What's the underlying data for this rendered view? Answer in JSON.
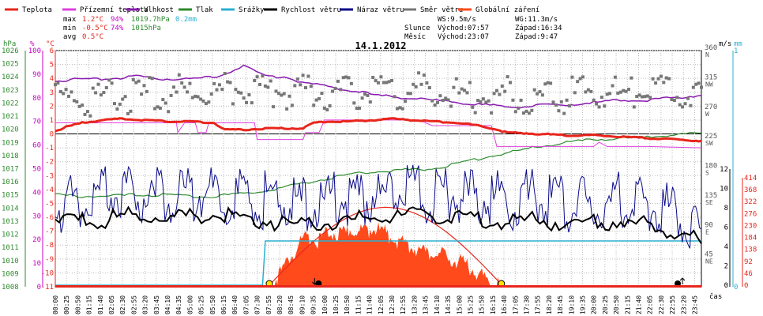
{
  "legend": [
    {
      "label": "Teplota",
      "color": "#e8261c"
    },
    {
      "label": "Přízemní teplota",
      "color": "#e040e0"
    },
    {
      "label": "Vlhkost",
      "color": "#8a1bb0"
    },
    {
      "label": "Tlak",
      "color": "#2e8b2e"
    },
    {
      "label": "Srážky",
      "color": "#2bb0d0"
    },
    {
      "label": "Rychlost větru",
      "color": "#000000"
    },
    {
      "label": "Náraz větru",
      "color": "#0a0a8a"
    },
    {
      "label": "Směr větru",
      "color": "#777777"
    },
    {
      "label": "Globální záření",
      "color": "#ff4a1c"
    }
  ],
  "stats": {
    "max": {
      "label": "max",
      "temp": "1.2°C",
      "hum": "94%",
      "press": "1019.7hPa",
      "rain": "0.2mm"
    },
    "min": {
      "label": "min",
      "temp": "-0.5°C",
      "hum": "74%",
      "press": "1015hPa"
    },
    "avg": {
      "label": "avg",
      "temp": "0.5°C"
    }
  },
  "wind_info": {
    "ws": "WS:9.5m/s",
    "wg": "WG:11.3m/s"
  },
  "sun_info": {
    "label": "Slunce",
    "rise": "Východ:07:57",
    "set": "Západ:16:34"
  },
  "moon_info": {
    "label": "Měsíc",
    "rise": "Východ:23:07",
    "set": "Západ:9:47"
  },
  "axis_headers": {
    "hpa": "hPa",
    "pct": "%",
    "degc": "°C",
    "ms": "m/s",
    "mm": "mm",
    "time": "čas"
  },
  "chart_data": {
    "type": "line",
    "title": "14.1.2012",
    "x_ticks": [
      "00:00",
      "00:25",
      "00:50",
      "01:15",
      "01:40",
      "02:05",
      "02:30",
      "02:55",
      "03:20",
      "03:45",
      "04:10",
      "04:35",
      "05:00",
      "05:25",
      "05:50",
      "06:15",
      "06:40",
      "07:05",
      "07:30",
      "07:55",
      "08:20",
      "08:45",
      "09:10",
      "09:35",
      "10:00",
      "10:25",
      "10:50",
      "11:15",
      "11:40",
      "12:05",
      "12:30",
      "12:55",
      "13:20",
      "13:45",
      "14:10",
      "14:35",
      "15:00",
      "15:25",
      "15:50",
      "16:15",
      "16:40",
      "17:05",
      "17:30",
      "17:55",
      "18:20",
      "18:45",
      "19:10",
      "19:35",
      "20:00",
      "20:25",
      "20:50",
      "21:15",
      "21:40",
      "22:05",
      "22:30",
      "22:55",
      "23:20",
      "23:45"
    ],
    "axes": {
      "pressure_hpa": {
        "min": 1008,
        "max": 1026,
        "step": 1,
        "color": "#2e8b2e",
        "ticks": [
          "1008",
          "1009",
          "1010",
          "1011",
          "1012",
          "1013",
          "1014",
          "1015",
          "1016",
          "1017",
          "1018",
          "1019",
          "1020",
          "1021",
          "1022",
          "1023",
          "1024",
          "1025",
          "1026"
        ]
      },
      "humidity_pct": {
        "min": 0,
        "max": 100,
        "step": 10,
        "color": "#c800c8",
        "ticks": [
          "0",
          "10",
          "20",
          "30",
          "40",
          "50",
          "60",
          "70",
          "80",
          "90",
          "100"
        ]
      },
      "temperature_c": {
        "min": -11,
        "max": 6,
        "step": 1,
        "color": "#e8261c",
        "ticks": [
          "-11",
          "-10",
          "-9",
          "-8",
          "-7",
          "-6",
          "-5",
          "-4",
          "-3",
          "-2",
          "-1",
          "0",
          "1",
          "2",
          "3",
          "4",
          "5",
          "6"
        ]
      },
      "wind_dir_deg": {
        "ticks": [
          {
            "v": 45,
            "l": "45",
            "c": "NE"
          },
          {
            "v": 90,
            "l": "90",
            "c": "E"
          },
          {
            "v": 135,
            "l": "135",
            "c": "SE"
          },
          {
            "v": 180,
            "l": "180",
            "c": "S"
          },
          {
            "v": 225,
            "l": "225",
            "c": "SW"
          },
          {
            "v": 270,
            "l": "270",
            "c": "W"
          },
          {
            "v": 315,
            "l": "315",
            "c": "NW"
          },
          {
            "v": 360,
            "l": "360",
            "c": "N"
          }
        ]
      },
      "wind_speed_ms": {
        "min": 0,
        "max": 12,
        "ticks": [
          "0",
          "2",
          "4",
          "6",
          "8",
          "10",
          "12"
        ]
      },
      "rain_mm": {
        "ticks": [
          "0",
          "1"
        ]
      },
      "radiation_wm2": {
        "min": 0,
        "max": 414,
        "color": "#e8261c",
        "ticks": [
          "0",
          "46",
          "92",
          "138",
          "184",
          "230",
          "276",
          "322",
          "368",
          "414"
        ]
      }
    },
    "series": [
      {
        "name": "Teplota",
        "unit": "°C",
        "points": [
          [
            0,
            0.2
          ],
          [
            0.4,
            0.5
          ],
          [
            1,
            0.8
          ],
          [
            1.8,
            1.0
          ],
          [
            2.5,
            1.1
          ],
          [
            3.2,
            1.0
          ],
          [
            4.2,
            0.9
          ],
          [
            5,
            0.9
          ],
          [
            5.9,
            0.8
          ],
          [
            6.3,
            0.3
          ],
          [
            7,
            0.3
          ],
          [
            7.8,
            0.4
          ],
          [
            8.5,
            0.4
          ],
          [
            9.2,
            0.4
          ],
          [
            9.6,
            0.8
          ],
          [
            10.2,
            0.9
          ],
          [
            11,
            0.9
          ],
          [
            11.8,
            1.0
          ],
          [
            12.5,
            1.1
          ],
          [
            13.2,
            1.0
          ],
          [
            14,
            0.9
          ],
          [
            15,
            0.8
          ],
          [
            16,
            0.5
          ],
          [
            16.8,
            0.1
          ],
          [
            18,
            0.0
          ],
          [
            19,
            -0.1
          ],
          [
            20,
            -0.1
          ],
          [
            21,
            -0.2
          ],
          [
            22,
            -0.3
          ],
          [
            23,
            -0.4
          ],
          [
            24,
            -0.5
          ]
        ]
      },
      {
        "name": "Přízemní teplota",
        "unit": "°C",
        "points": [
          [
            0,
            0.8
          ],
          [
            1.2,
            0.8
          ],
          [
            1.25,
            0.8
          ],
          [
            4.5,
            0.8
          ],
          [
            4.55,
            0.1
          ],
          [
            4.8,
            0.8
          ],
          [
            5.2,
            0.8
          ],
          [
            5.3,
            0.1
          ],
          [
            5.6,
            0.1
          ],
          [
            5.7,
            0.8
          ],
          [
            6.8,
            0.8
          ],
          [
            7.4,
            0.8
          ],
          [
            7.5,
            -0.4
          ],
          [
            9.2,
            -0.4
          ],
          [
            9.3,
            0.1
          ],
          [
            9.8,
            0.1
          ],
          [
            10,
            1.0
          ],
          [
            13.5,
            1.0
          ],
          [
            14,
            0.6
          ],
          [
            16.2,
            0.6
          ],
          [
            16.4,
            -0.9
          ],
          [
            17,
            -0.9
          ],
          [
            20,
            -0.9
          ],
          [
            20.2,
            -0.6
          ],
          [
            20.5,
            -0.9
          ],
          [
            22,
            -0.9
          ],
          [
            24,
            -1.0
          ]
        ]
      },
      {
        "name": "Vlhkost",
        "unit": "%",
        "points": [
          [
            0,
            87
          ],
          [
            1,
            88
          ],
          [
            2,
            88
          ],
          [
            3,
            89
          ],
          [
            4,
            88
          ],
          [
            5,
            88
          ],
          [
            6,
            89
          ],
          [
            6.5,
            91
          ],
          [
            7,
            94
          ],
          [
            7.3,
            92
          ],
          [
            7.8,
            89
          ],
          [
            8.5,
            89
          ],
          [
            9,
            87
          ],
          [
            10,
            85
          ],
          [
            11,
            83
          ],
          [
            12,
            81
          ],
          [
            13,
            80
          ],
          [
            14,
            79
          ],
          [
            15,
            78
          ],
          [
            16,
            77
          ],
          [
            17,
            76
          ],
          [
            18,
            77
          ],
          [
            19,
            77
          ],
          [
            20,
            78
          ],
          [
            21,
            79
          ],
          [
            22,
            79
          ],
          [
            23,
            80
          ],
          [
            24,
            81
          ]
        ]
      },
      {
        "name": "Tlak",
        "unit": "hPa",
        "points": [
          [
            0,
            1015
          ],
          [
            1,
            1014.9
          ],
          [
            2,
            1014.9
          ],
          [
            3,
            1015
          ],
          [
            4,
            1015
          ],
          [
            5,
            1014.9
          ],
          [
            6,
            1014.9
          ],
          [
            7,
            1015.1
          ],
          [
            8,
            1015.4
          ],
          [
            9,
            1015.8
          ],
          [
            10,
            1016.2
          ],
          [
            11,
            1016.6
          ],
          [
            12,
            1016.8
          ],
          [
            13,
            1016.9
          ],
          [
            14,
            1017.0
          ],
          [
            15,
            1017.4
          ],
          [
            16,
            1017.9
          ],
          [
            17,
            1018.3
          ],
          [
            18,
            1018.7
          ],
          [
            19,
            1019.0
          ],
          [
            20,
            1019.2
          ],
          [
            21,
            1019.3
          ],
          [
            22,
            1019.4
          ],
          [
            23,
            1019.6
          ],
          [
            24,
            1019.7
          ]
        ]
      },
      {
        "name": "Srážky",
        "unit": "mm",
        "points": [
          [
            0,
            0
          ],
          [
            7.7,
            0
          ],
          [
            7.8,
            0.2
          ],
          [
            24,
            0.2
          ]
        ]
      },
      {
        "name": "Rychlost větru",
        "unit": "m/s",
        "points": [
          [
            0,
            6.4
          ],
          [
            1,
            6.8
          ],
          [
            2,
            6.9
          ],
          [
            3,
            7.3
          ],
          [
            4,
            7.0
          ],
          [
            5,
            7.2
          ],
          [
            6,
            7.5
          ],
          [
            7,
            7.0
          ],
          [
            8,
            6.7
          ],
          [
            9,
            6.3
          ],
          [
            10,
            6.5
          ],
          [
            11,
            6.8
          ],
          [
            12,
            7.0
          ],
          [
            13,
            7.2
          ],
          [
            14,
            7.4
          ],
          [
            15,
            7.1
          ],
          [
            16,
            6.8
          ],
          [
            17,
            6.6
          ],
          [
            18,
            6.7
          ],
          [
            19,
            6.5
          ],
          [
            20,
            6.4
          ],
          [
            21,
            6.6
          ],
          [
            22,
            6.1
          ],
          [
            23,
            5.6
          ],
          [
            24,
            4.3
          ]
        ]
      },
      {
        "name": "Náraz větru",
        "unit": "m/s",
        "points": [
          [
            0,
            8.2
          ],
          [
            1,
            9.0
          ],
          [
            2,
            9.3
          ],
          [
            3,
            9.1
          ],
          [
            4,
            9.0
          ],
          [
            5,
            9.3
          ],
          [
            6,
            9.6
          ],
          [
            7,
            9.0
          ],
          [
            8,
            8.8
          ],
          [
            9,
            8.5
          ],
          [
            10,
            8.7
          ],
          [
            11,
            9.0
          ],
          [
            12,
            9.3
          ],
          [
            13,
            9.4
          ],
          [
            14,
            9.6
          ],
          [
            15,
            9.2
          ],
          [
            16,
            8.9
          ],
          [
            17,
            8.7
          ],
          [
            18,
            8.9
          ],
          [
            19,
            8.6
          ],
          [
            20,
            8.4
          ],
          [
            21,
            8.6
          ],
          [
            22,
            8.0
          ],
          [
            23,
            7.2
          ],
          [
            24,
            5.8
          ]
        ]
      },
      {
        "name": "Směr větru",
        "unit": "°",
        "points": [
          [
            0,
            283
          ],
          [
            1,
            285
          ],
          [
            2,
            289
          ],
          [
            3,
            292
          ],
          [
            4,
            294
          ],
          [
            5,
            296
          ],
          [
            6,
            300
          ],
          [
            7,
            304
          ],
          [
            8,
            300
          ],
          [
            9,
            297
          ],
          [
            10,
            296
          ],
          [
            11,
            298
          ],
          [
            12,
            300
          ],
          [
            13,
            299
          ],
          [
            14,
            297
          ],
          [
            15,
            294
          ],
          [
            16,
            293
          ],
          [
            17,
            292
          ],
          [
            18,
            291
          ],
          [
            19,
            292
          ],
          [
            20,
            294
          ],
          [
            21,
            295
          ],
          [
            22,
            297
          ],
          [
            23,
            299
          ],
          [
            24,
            304
          ]
        ]
      },
      {
        "name": "Globální záření",
        "unit": "W/m²",
        "points": [
          [
            7.9,
            0
          ],
          [
            8.2,
            25
          ],
          [
            8.6,
            85
          ],
          [
            9,
            150
          ],
          [
            9.4,
            185
          ],
          [
            9.8,
            170
          ],
          [
            10.2,
            210
          ],
          [
            10.6,
            190
          ],
          [
            11,
            215
          ],
          [
            11.4,
            205
          ],
          [
            11.8,
            220
          ],
          [
            12.2,
            205
          ],
          [
            12.6,
            175
          ],
          [
            13,
            160
          ],
          [
            13.4,
            140
          ],
          [
            13.8,
            120
          ],
          [
            14.2,
            115
          ],
          [
            14.6,
            108
          ],
          [
            15,
            90
          ],
          [
            15.4,
            70
          ],
          [
            15.8,
            40
          ],
          [
            16.2,
            12
          ],
          [
            16.5,
            0
          ]
        ]
      }
    ]
  }
}
